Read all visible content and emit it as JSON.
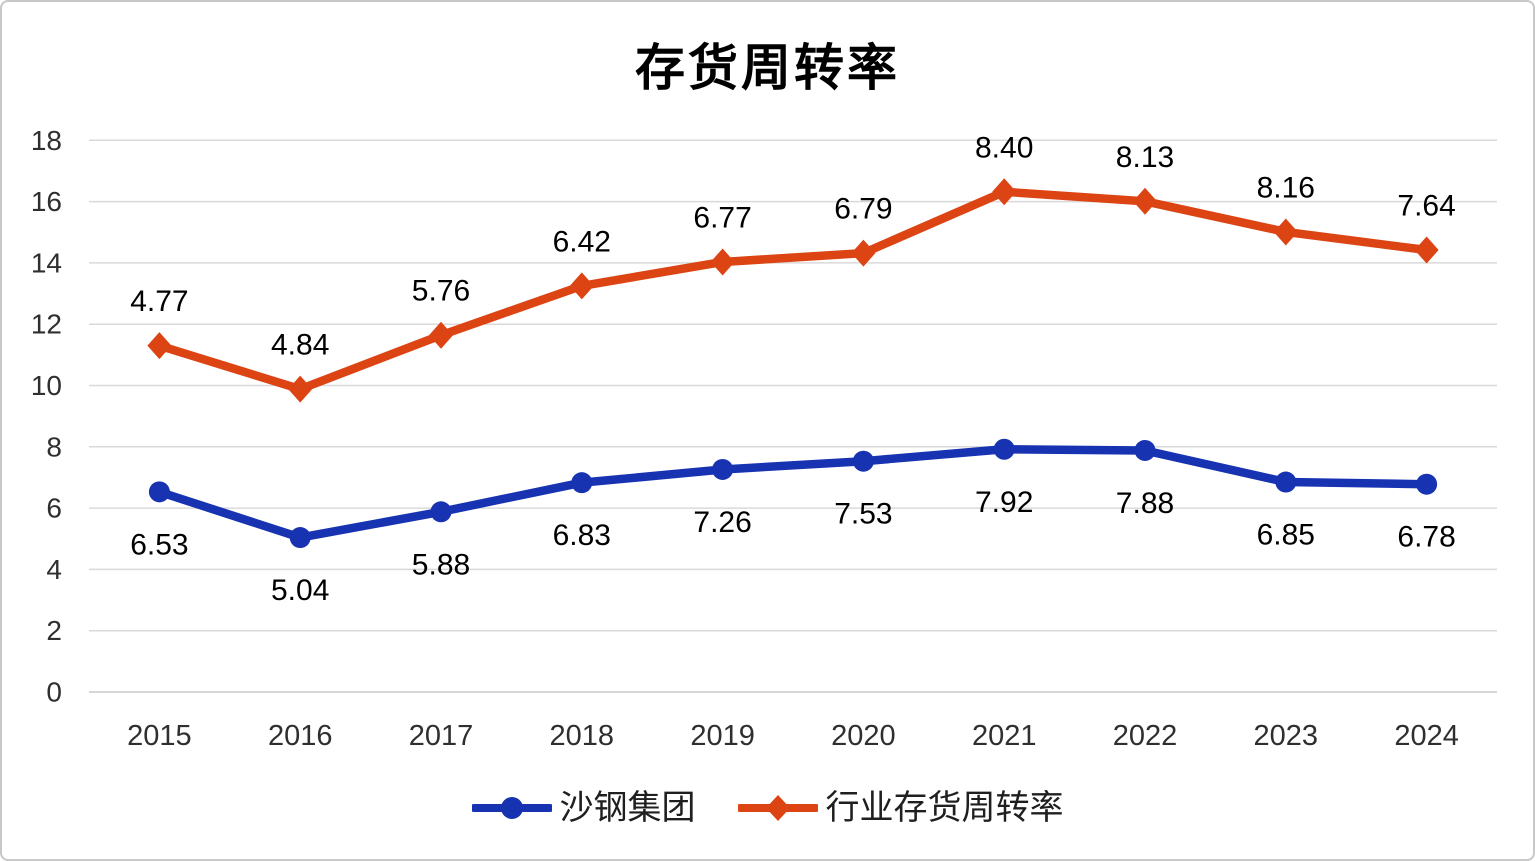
{
  "chart_data": {
    "type": "line",
    "stacked": true,
    "title": "存货周转率",
    "categories": [
      "2015",
      "2016",
      "2017",
      "2018",
      "2019",
      "2020",
      "2021",
      "2022",
      "2023",
      "2024"
    ],
    "series": [
      {
        "name": "沙钢集团",
        "marker": "circle",
        "color": "#1733B2",
        "label_position": "below",
        "values": [
          6.53,
          5.04,
          5.88,
          6.83,
          7.26,
          7.53,
          7.92,
          7.88,
          6.85,
          6.78
        ],
        "labels": [
          "6.53",
          "5.04",
          "5.88",
          "6.83",
          "7.26",
          "7.53",
          "7.92",
          "7.88",
          "6.85",
          "6.78"
        ]
      },
      {
        "name": "行业存货周转率",
        "marker": "diamond",
        "color": "#DC4414",
        "label_position": "above",
        "values": [
          4.77,
          4.84,
          5.76,
          6.42,
          6.77,
          6.79,
          8.4,
          8.13,
          8.16,
          7.64
        ],
        "labels": [
          "4.77",
          "4.84",
          "5.76",
          "6.42",
          "6.77",
          "6.79",
          "8.40",
          "8.13",
          "8.16",
          "7.64"
        ]
      }
    ],
    "y_axis": {
      "min": 0,
      "max": 18,
      "step": 2,
      "tick_labels": [
        "0",
        "2",
        "4",
        "6",
        "8",
        "10",
        "12",
        "14",
        "16",
        "18"
      ]
    },
    "x_axis": {
      "tick_labels": [
        "2015",
        "2016",
        "2017",
        "2018",
        "2019",
        "2020",
        "2021",
        "2022",
        "2023",
        "2024"
      ]
    },
    "grid": true,
    "legend_position": "bottom"
  },
  "colors": {
    "series_blue": "#1733B2",
    "series_orange": "#DC4414",
    "gridline": "#D9D9D9",
    "axis_line": "#C9C9C9",
    "tick_text": "#2F2F2F",
    "data_label_text": "#000000",
    "legend_text": "#1F1F1F",
    "background": "#FFFFFF",
    "border": "#C8C8C8"
  }
}
